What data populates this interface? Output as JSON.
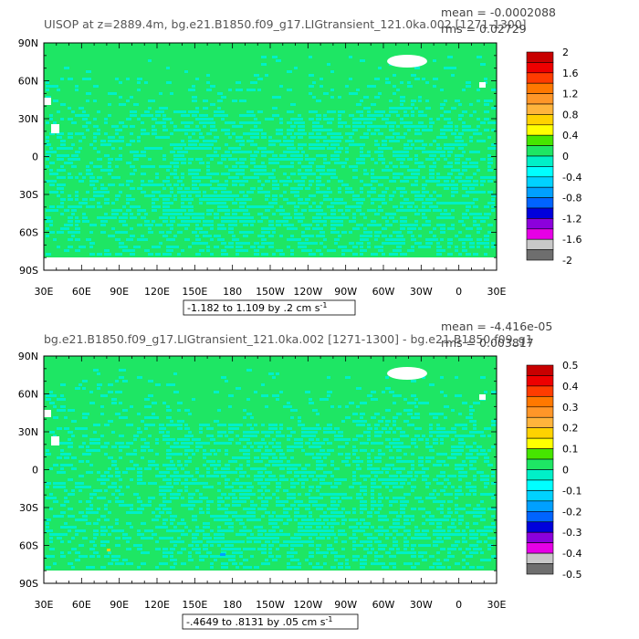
{
  "chart_data": [
    {
      "type": "heatmap",
      "title": "UISOP at z=2889.4m, bg.e21.B1850.f09_g17.LIGtransient_121.0ka.002 [1271-1300]",
      "mean_label": "mean = -0.0002088",
      "rms_label": "rms = 0.02729",
      "contour_info": "-1.182 to 1.109 by .2 cm s",
      "contour_info_sup": "-1",
      "x_ticks": [
        "30E",
        "60E",
        "90E",
        "120E",
        "150E",
        "180",
        "150W",
        "120W",
        "90W",
        "60W",
        "30W",
        "0",
        "30E"
      ],
      "y_ticks": [
        "90N",
        "60N",
        "30N",
        "0",
        "30S",
        "60S",
        "90S"
      ],
      "colorbar_labels": [
        "2",
        "1.6",
        "1.2",
        "0.8",
        "0.4",
        "0",
        "-0.4",
        "-0.8",
        "-1.2",
        "-1.6",
        "-2"
      ],
      "colorbar_colors": [
        "#c80000",
        "#ee0000",
        "#ff3c00",
        "#ff7800",
        "#ff9628",
        "#ffb43c",
        "#ffd200",
        "#ffff00",
        "#46e600",
        "#1ee664",
        "#00f0c8",
        "#00ffff",
        "#00d2ff",
        "#00a0ff",
        "#0064ff",
        "#0000dc",
        "#8c00dc",
        "#e600e6",
        "#c8c8c8",
        "#6e6e6e"
      ]
    },
    {
      "type": "heatmap",
      "title": "bg.e21.B1850.f09_g17.LIGtransient_121.0ka.002 [1271-1300] - bg.e21.B1850.f09_g1",
      "mean_label": "mean = -4.416e-05",
      "rms_label": "rms = 0.003817",
      "contour_info": "-.4649 to .8131 by .05 cm s",
      "contour_info_sup": "-1",
      "x_ticks": [
        "30E",
        "60E",
        "90E",
        "120E",
        "150E",
        "180",
        "150W",
        "120W",
        "90W",
        "60W",
        "30W",
        "0",
        "30E"
      ],
      "y_ticks": [
        "90N",
        "60N",
        "30N",
        "0",
        "30S",
        "60S",
        "90S"
      ],
      "colorbar_labels": [
        "0.5",
        "0.4",
        "0.3",
        "0.2",
        "0.1",
        "0",
        "-0.1",
        "-0.2",
        "-0.3",
        "-0.4",
        "-0.5"
      ],
      "colorbar_colors": [
        "#c80000",
        "#ee0000",
        "#ff3c00",
        "#ff7800",
        "#ff9628",
        "#ffb43c",
        "#ffd200",
        "#ffff00",
        "#46e600",
        "#1ee664",
        "#00f0c8",
        "#00ffff",
        "#00d2ff",
        "#00a0ff",
        "#0064ff",
        "#0000dc",
        "#8c00dc",
        "#e600e6",
        "#c8c8c8",
        "#6e6e6e"
      ]
    }
  ],
  "colors": {
    "field_background": "#1ee664",
    "field_speckle": "#00f0c8",
    "land_mask": "#ffffff"
  }
}
